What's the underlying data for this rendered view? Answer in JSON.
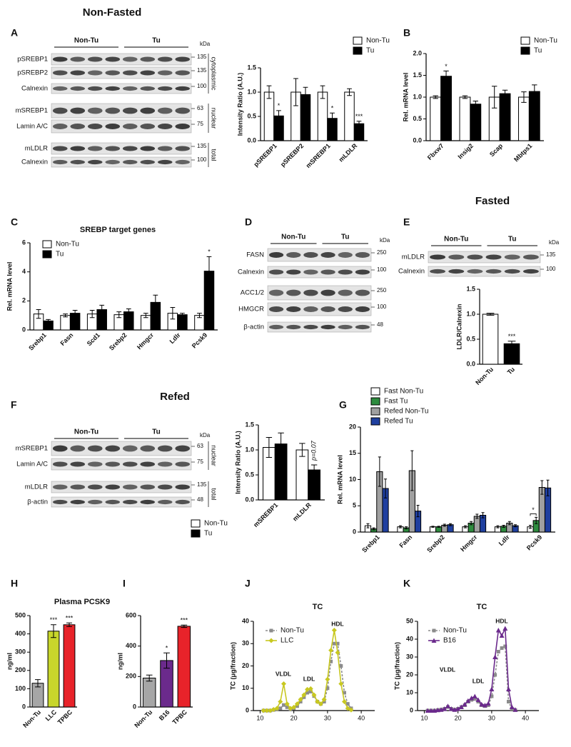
{
  "headings": [
    "Non-Fasted",
    "Fasted",
    "Refed"
  ],
  "panels": [
    "A",
    "B",
    "C",
    "D",
    "E",
    "F",
    "G",
    "H",
    "I",
    "J",
    "K"
  ],
  "blots": [
    {
      "groups": [
        "Non-Tu",
        "Tu"
      ],
      "unit": "kDa",
      "rows": [
        {
          "label": "pSREBP1",
          "marker": "135"
        },
        {
          "label": "pSREBP2",
          "marker": "135"
        },
        {
          "label": "Calnexin",
          "marker": "100"
        },
        {
          "label": "mSREBP1",
          "marker": "63"
        },
        {
          "label": "Lamin A/C",
          "marker": "75"
        },
        {
          "label": "mLDLR",
          "marker": "135"
        },
        {
          "label": "Calnexin",
          "marker": "100"
        }
      ],
      "sections": [
        "cytoplasmic",
        "nuclear",
        "total"
      ]
    },
    {
      "groups": [
        "Non-Tu",
        "Tu"
      ],
      "unit": "kDa",
      "rows": [
        {
          "label": "FASN",
          "marker": "250"
        },
        {
          "label": "Calnexin",
          "marker": "100"
        },
        {
          "label": "ACC1/2",
          "marker": "250"
        },
        {
          "label": "HMGCR",
          "marker": "100"
        },
        {
          "label": "β-actin",
          "marker": "48"
        }
      ]
    },
    {
      "groups": [
        "Non-Tu",
        "Tu"
      ],
      "unit": "kDa",
      "rows": [
        {
          "label": "mLDLR",
          "marker": "135"
        },
        {
          "label": "Calnexin",
          "marker": "100"
        }
      ]
    },
    {
      "groups": [
        "Non-Tu",
        "Tu"
      ],
      "unit": "kDa",
      "rows": [
        {
          "label": "mSREBP1",
          "marker": "63"
        },
        {
          "label": "Lamin A/C",
          "marker": "75"
        },
        {
          "label": "mLDLR",
          "marker": "135"
        },
        {
          "label": "β-actin",
          "marker": "48"
        }
      ],
      "sections": [
        "nuclear",
        "total"
      ]
    }
  ],
  "chart_data": [
    {
      "type": "bar",
      "y_label": "Intensity Ratio (A.U.)",
      "categories": [
        "pSREBP1",
        "pSREBP2",
        "mSREBP1",
        "mLDLR"
      ],
      "ylim": [
        0,
        1.5
      ],
      "yticks": [
        {
          "value": 0,
          "label": "0.0"
        },
        {
          "value": 0.5,
          "label": "0.5"
        },
        {
          "value": 1,
          "label": "1.0"
        },
        {
          "value": 1.5,
          "label": "1.5"
        }
      ],
      "series": [
        {
          "name": "Non-Tu",
          "color": "#ffffff",
          "values": [
            1.0,
            1.0,
            1.0,
            1.0
          ],
          "errors": [
            0.13,
            0.28,
            0.13,
            0.07
          ]
        },
        {
          "name": "Tu",
          "color": "#000000",
          "values": [
            0.51,
            0.95,
            0.46,
            0.35
          ],
          "errors": [
            0.11,
            0.15,
            0.11,
            0.05
          ],
          "stars": [
            "*",
            null,
            "*",
            "***"
          ]
        }
      ]
    },
    {
      "type": "bar",
      "y_label": "Rel. mRNA level",
      "categories": [
        "Fbxw7",
        "Insig2",
        "Scap",
        "Mbtps1"
      ],
      "ylim": [
        0,
        2
      ],
      "yticks": [
        {
          "value": 0,
          "label": "0.0"
        },
        {
          "value": 0.5,
          "label": "0.5"
        },
        {
          "value": 1,
          "label": "1.0"
        },
        {
          "value": 1.5,
          "label": "1.5"
        },
        {
          "value": 2,
          "label": "2.0"
        }
      ],
      "series": [
        {
          "name": "Non-Tu",
          "color": "#ffffff",
          "values": [
            1.0,
            1.0,
            1.0,
            1.0
          ],
          "errors": [
            0.03,
            0.03,
            0.25,
            0.12
          ]
        },
        {
          "name": "Tu",
          "color": "#000000",
          "values": [
            1.48,
            0.84,
            1.08,
            1.13
          ],
          "errors": [
            0.12,
            0.07,
            0.08,
            0.15
          ],
          "stars": [
            "*",
            null,
            null,
            null
          ]
        }
      ]
    },
    {
      "type": "bar",
      "title": "SREBP target genes",
      "y_label": "Rel. mRNA level",
      "categories": [
        "Srebp1",
        "Fasn",
        "Scd1",
        "Srebp2",
        "Hmgcr",
        "Ldlr",
        "Pcsk9"
      ],
      "ylim": [
        0,
        6
      ],
      "yticks": [
        0,
        2,
        4,
        6
      ],
      "series": [
        {
          "name": "Non-Tu",
          "color": "#ffffff",
          "values": [
            1.1,
            1.0,
            1.1,
            1.05,
            1.0,
            1.15,
            1.0
          ],
          "errors": [
            0.3,
            0.1,
            0.25,
            0.2,
            0.15,
            0.4,
            0.15
          ]
        },
        {
          "name": "Tu",
          "color": "#000000",
          "values": [
            0.62,
            1.15,
            1.4,
            1.25,
            1.9,
            1.05,
            4.05
          ],
          "errors": [
            0.1,
            0.2,
            0.3,
            0.2,
            0.5,
            0.1,
            1.0
          ],
          "stars": [
            null,
            null,
            null,
            null,
            null,
            null,
            "*"
          ]
        }
      ]
    },
    {
      "type": "bar",
      "y_label": "LDLR/Calnexin",
      "categories": [
        "Non-Tu",
        "Tu"
      ],
      "ylim": [
        0,
        1.5
      ],
      "yticks": [
        {
          "value": 0,
          "label": "0.0"
        },
        {
          "value": 0.5,
          "label": "0.5"
        },
        {
          "value": 1,
          "label": "1.0"
        },
        {
          "value": 1.5,
          "label": "1.5"
        }
      ],
      "values": [
        1.0,
        0.41
      ],
      "errors": [
        0.02,
        0.05
      ],
      "colors": [
        "#ffffff",
        "#000000"
      ],
      "stars": [
        null,
        "***"
      ]
    },
    {
      "type": "bar",
      "y_label": "Intensity Ratio (A.U.)",
      "categories": [
        "mSREBP1",
        "mLDLR"
      ],
      "annotation": "p=0.07",
      "ylim": [
        0,
        1.5
      ],
      "yticks": [
        {
          "value": 0,
          "label": "0.0"
        },
        {
          "value": 0.5,
          "label": "0.5"
        },
        {
          "value": 1,
          "label": "1.0"
        },
        {
          "value": 1.5,
          "label": "1.5"
        }
      ],
      "series": [
        {
          "name": "Non-Tu",
          "color": "#ffffff",
          "values": [
            1.05,
            1.0
          ],
          "errors": [
            0.2,
            0.13
          ]
        },
        {
          "name": "Tu",
          "color": "#000000",
          "values": [
            1.12,
            0.6
          ],
          "errors": [
            0.22,
            0.1
          ]
        }
      ]
    },
    {
      "type": "bar",
      "y_label": "Rel. mRNA level",
      "categories": [
        "Srebp1",
        "Fasn",
        "Srebp2",
        "Hmgcr",
        "Ldlr",
        "Pcsk9"
      ],
      "annotation": "*",
      "ylim": [
        0,
        20
      ],
      "yticks": [
        0,
        5,
        10,
        15,
        20
      ],
      "series": [
        {
          "name": "Fast Non-Tu",
          "color": "#ffffff",
          "values": [
            1.2,
            1.0,
            1.0,
            1.0,
            1.0,
            1.0
          ],
          "errors": [
            0.4,
            0.2,
            0.1,
            0.2,
            0.2,
            0.3
          ]
        },
        {
          "name": "Fast Tu",
          "color": "#2e8b3e",
          "values": [
            0.6,
            0.8,
            1.0,
            1.7,
            1.1,
            2.2
          ],
          "errors": [
            0.2,
            0.2,
            0.1,
            0.3,
            0.2,
            0.6
          ]
        },
        {
          "name": "Refed Non-Tu",
          "color": "#a0a0a0",
          "values": [
            11.5,
            11.7,
            1.3,
            3.0,
            1.7,
            8.5
          ],
          "errors": [
            2.8,
            3.8,
            0.2,
            0.4,
            0.3,
            1.3
          ]
        },
        {
          "name": "Refed Tu",
          "color": "#1f3f9f",
          "values": [
            8.3,
            4.0,
            1.4,
            3.2,
            1.2,
            8.4
          ],
          "errors": [
            1.8,
            1.1,
            0.2,
            0.5,
            0.2,
            1.5
          ]
        }
      ]
    },
    {
      "type": "bar",
      "title": "Plasma PCSK9",
      "y_label": "ng/ml",
      "categories": [
        "Non-Tu",
        "LLC",
        "TPBC"
      ],
      "ylim": [
        0,
        500
      ],
      "yticks": [
        0,
        100,
        200,
        300,
        400,
        500
      ],
      "values": [
        130,
        415,
        450
      ],
      "errors": [
        20,
        35,
        10
      ],
      "colors": [
        "#a6a6a6",
        "#c8d62b",
        "#e8232a"
      ],
      "stars": [
        null,
        "***",
        "***"
      ]
    },
    {
      "type": "bar",
      "y_label": "ng/ml",
      "categories": [
        "Non-Tu",
        "B16",
        "TPBC"
      ],
      "ylim": [
        0,
        600
      ],
      "yticks": [
        0,
        200,
        400,
        600
      ],
      "values": [
        190,
        305,
        530
      ],
      "errors": [
        20,
        50,
        8
      ],
      "colors": [
        "#a6a6a6",
        "#6b2a8c",
        "#e8232a"
      ],
      "stars": [
        null,
        "*",
        "***"
      ]
    },
    {
      "type": "line",
      "title": "TC",
      "y_label": "TC (μg/fraction)",
      "annotations": [
        "VLDL",
        "LDL",
        "HDL"
      ],
      "xlim": [
        8,
        44
      ],
      "xticks": [
        10,
        20,
        30,
        40
      ],
      "ylim": [
        0,
        40
      ],
      "yticks": [
        0,
        10,
        20,
        30,
        40
      ],
      "x": [
        11,
        12,
        13,
        14,
        15,
        16,
        17,
        18,
        19,
        20,
        21,
        22,
        23,
        24,
        25,
        26,
        27,
        28,
        29,
        30,
        31,
        32,
        33,
        34,
        35,
        36,
        37
      ],
      "series": [
        {
          "name": "Non-Tu",
          "color": "#8c8c8c",
          "marker": "square",
          "dashed": true,
          "values": [
            0,
            0,
            0,
            0.3,
            0.5,
            1,
            2.5,
            1.5,
            0.5,
            1,
            2,
            4,
            6,
            8,
            8.5,
            6.5,
            4,
            3,
            4,
            10,
            22,
            30,
            30,
            20,
            8,
            3,
            1
          ]
        },
        {
          "name": "LLC",
          "color": "#c8c820",
          "marker": "diamond",
          "dashed": false,
          "values": [
            0,
            0,
            0,
            0.5,
            1,
            4,
            12,
            3,
            1,
            1.5,
            3,
            5,
            7,
            9.5,
            9.8,
            7,
            4,
            3,
            5,
            14,
            27,
            36,
            26,
            12,
            4,
            1,
            0.3
          ]
        }
      ]
    },
    {
      "type": "line",
      "title": "TC",
      "y_label": "TC (μg/fraction)",
      "annotations": [
        "VLDL",
        "LDL",
        "HDL"
      ],
      "xlim": [
        8,
        44
      ],
      "xticks": [
        10,
        20,
        30,
        40
      ],
      "ylim": [
        0,
        50
      ],
      "yticks": [
        0,
        10,
        20,
        30,
        40,
        50
      ],
      "x": [
        11,
        12,
        13,
        14,
        15,
        16,
        17,
        18,
        19,
        20,
        21,
        22,
        23,
        24,
        25,
        26,
        27,
        28,
        29,
        30,
        31,
        32,
        33,
        34,
        35,
        36,
        37
      ],
      "series": [
        {
          "name": "Non-Tu",
          "color": "#8c8c8c",
          "marker": "square",
          "dashed": true,
          "values": [
            0,
            0,
            0,
            0.3,
            0.5,
            1,
            2,
            1,
            0.5,
            1,
            2,
            3,
            5,
            6,
            6.5,
            5,
            3,
            2.5,
            3,
            8,
            20,
            33,
            35,
            36,
            5,
            1,
            0.3
          ]
        },
        {
          "name": "B16",
          "color": "#6b2a8c",
          "marker": "triangle",
          "dashed": false,
          "values": [
            0,
            0,
            0,
            0.3,
            0.5,
            1,
            2.5,
            1,
            0.5,
            1,
            2,
            3.5,
            5.5,
            7,
            8,
            6,
            3.5,
            3,
            4,
            12,
            30,
            45,
            42,
            46,
            12,
            2,
            0.5
          ]
        }
      ]
    }
  ]
}
